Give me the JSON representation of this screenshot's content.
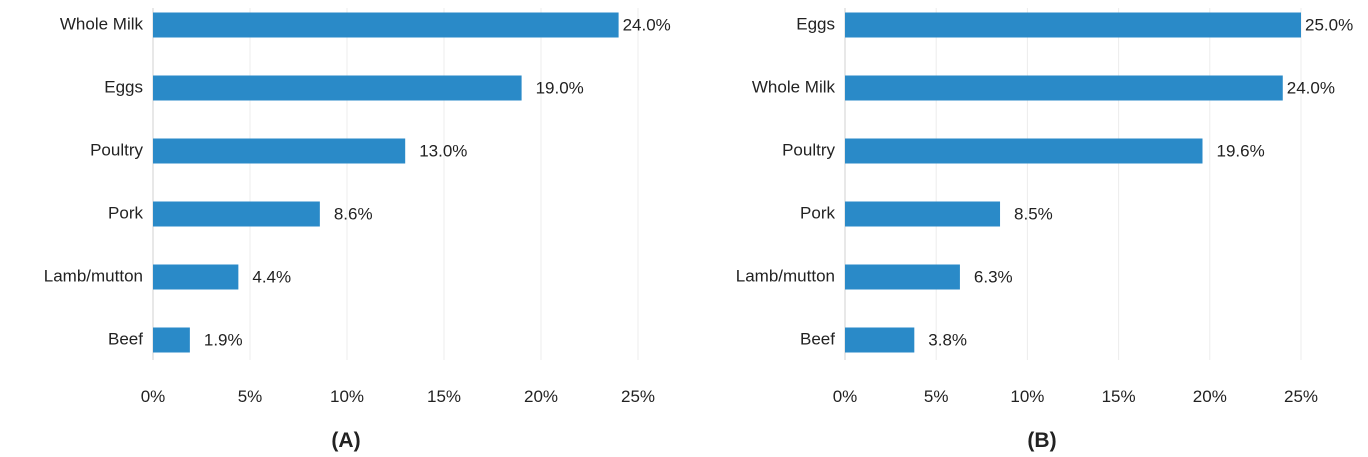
{
  "colors": {
    "bar": "#2a8ac8",
    "text": "#222222",
    "grid": "#ececec"
  },
  "chart_data": [
    {
      "type": "bar",
      "orientation": "horizontal",
      "panel_label": "(A)",
      "categories": [
        "Whole Milk",
        "Eggs",
        "Poultry",
        "Pork",
        "Lamb/mutton",
        "Beef"
      ],
      "values": [
        24.0,
        19.0,
        13.0,
        8.6,
        4.4,
        1.9
      ],
      "value_labels": [
        "24.0%",
        "19.0%",
        "13.0%",
        "8.6%",
        "4.4%",
        "1.9%"
      ],
      "xlim": [
        0,
        25
      ],
      "xticks": [
        0,
        5,
        10,
        15,
        20,
        25
      ],
      "xtick_labels": [
        "0%",
        "5%",
        "10%",
        "15%",
        "20%",
        "25%"
      ],
      "grid": true
    },
    {
      "type": "bar",
      "orientation": "horizontal",
      "panel_label": "(B)",
      "categories": [
        "Eggs",
        "Whole Milk",
        "Poultry",
        "Pork",
        "Lamb/mutton",
        "Beef"
      ],
      "values": [
        25.0,
        24.0,
        19.6,
        8.5,
        6.3,
        3.8
      ],
      "value_labels": [
        "25.0%",
        "24.0%",
        "19.6%",
        "8.5%",
        "6.3%",
        "3.8%"
      ],
      "xlim": [
        0,
        25
      ],
      "xticks": [
        0,
        5,
        10,
        15,
        20,
        25
      ],
      "xtick_labels": [
        "0%",
        "5%",
        "10%",
        "15%",
        "20%",
        "25%"
      ],
      "grid": true
    }
  ]
}
